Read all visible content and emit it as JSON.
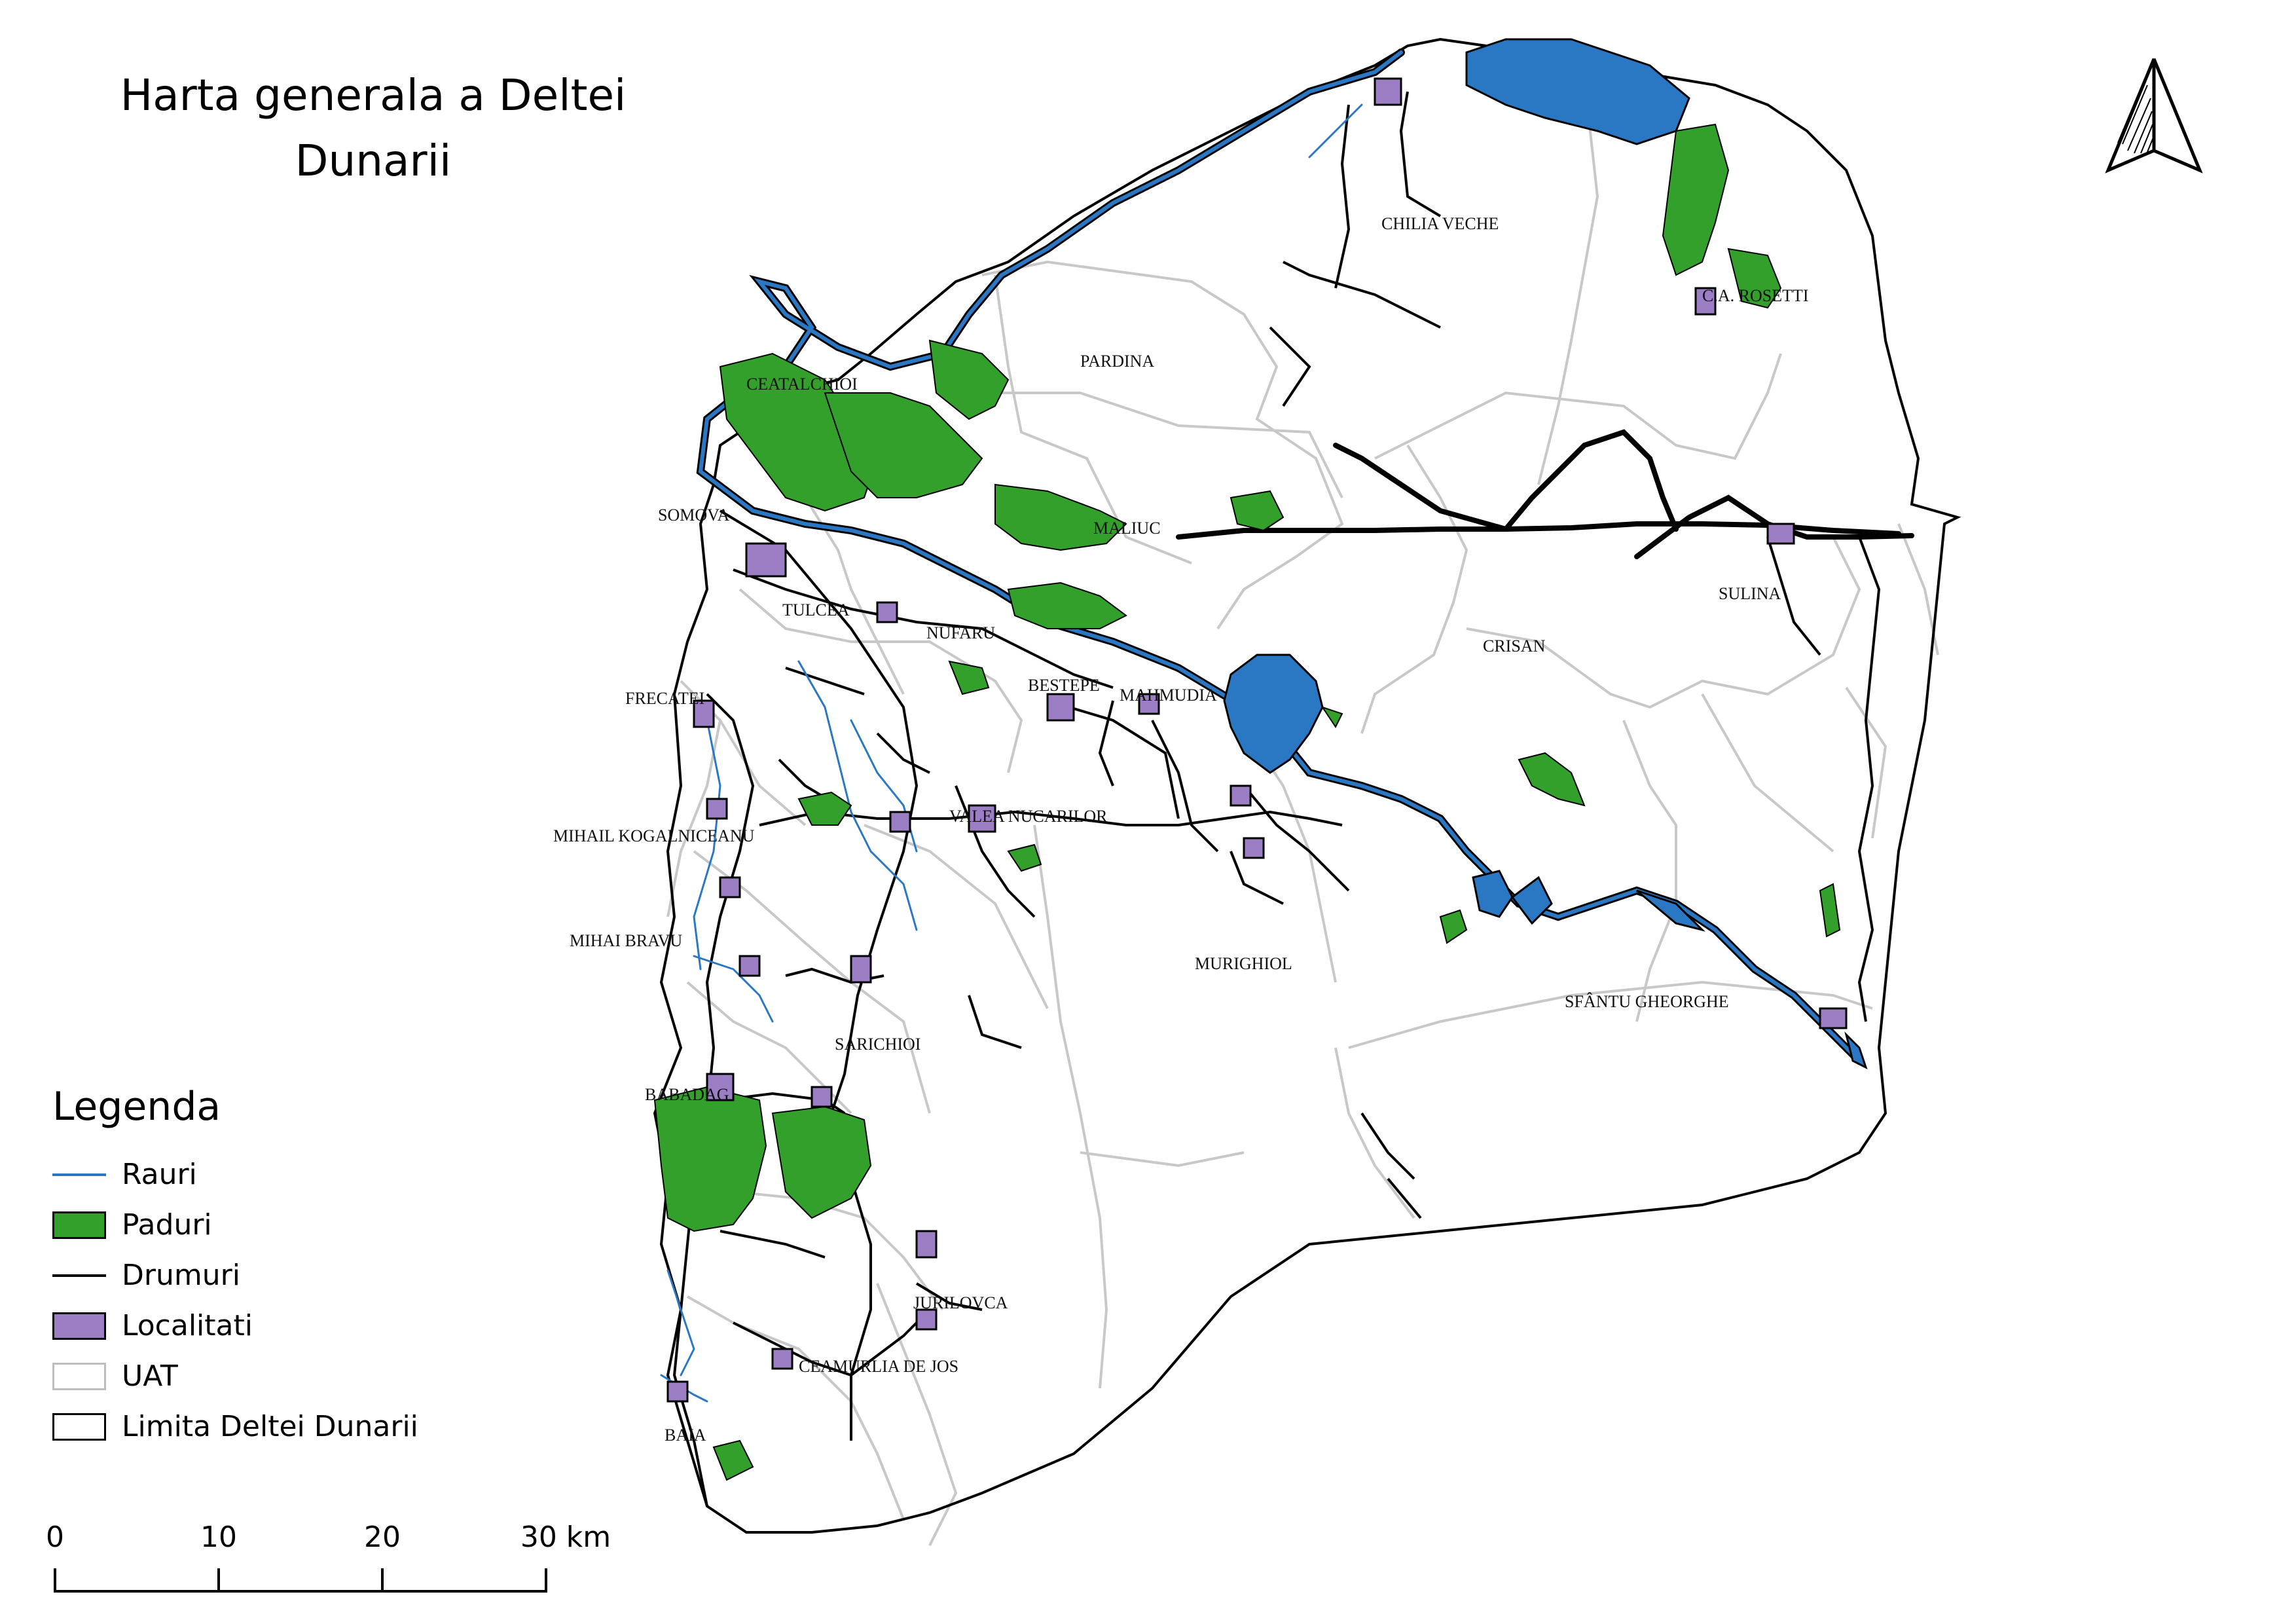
{
  "title": "Harta generala a Deltei Dunarii",
  "title_lines": [
    "Harta generala a Deltei",
    "Dunarii"
  ],
  "north_arrow": {
    "icon": "north-arrow-icon"
  },
  "legend": {
    "title": "Legenda",
    "items": [
      {
        "label": "Rauri",
        "kind": "line",
        "color": "#2a78c4"
      },
      {
        "label": "Paduri",
        "kind": "fill",
        "color": "#33a02c",
        "border": "#000000"
      },
      {
        "label": "Drumuri",
        "kind": "line",
        "color": "#000000"
      },
      {
        "label": "Localitati",
        "kind": "fill",
        "color": "#9b7ec4",
        "border": "#000000"
      },
      {
        "label": "UAT",
        "kind": "fill",
        "color": "#ffffff",
        "border": "#bdbdbd"
      },
      {
        "label": "Limita Deltei Dunarii",
        "kind": "fill",
        "color": "#ffffff",
        "border": "#000000"
      }
    ]
  },
  "scale_bar": {
    "ticks": [
      "0",
      "10",
      "20",
      "30 km"
    ]
  },
  "places": [
    "CHILIA VECHE",
    "CEATALCHIOI",
    "PARDINA",
    "SOMOVA",
    "MALIUC",
    "TULCEA",
    "NUFARU",
    "BESTEPE",
    "MAHMUDIA",
    "CRISAN",
    "SULINA",
    "FRECATEI",
    "MIHAIL KOGALNICEANU",
    "VALEA NUCARILOR",
    "MIHAI BRAVU",
    "MURIGHIOL",
    "SFÂNTU GHEORGHE",
    "SARICHIOI",
    "BABADAG",
    "JURILOVCA",
    "CEAMURLIA DE JOS",
    "BAIA",
    "C.A. ROSETTI"
  ],
  "colors": {
    "water": "#2a78c4",
    "forest": "#33a02c",
    "settlement": "#9b7ec4",
    "uat_border": "#c8c8c8",
    "delta_border": "#000000"
  }
}
